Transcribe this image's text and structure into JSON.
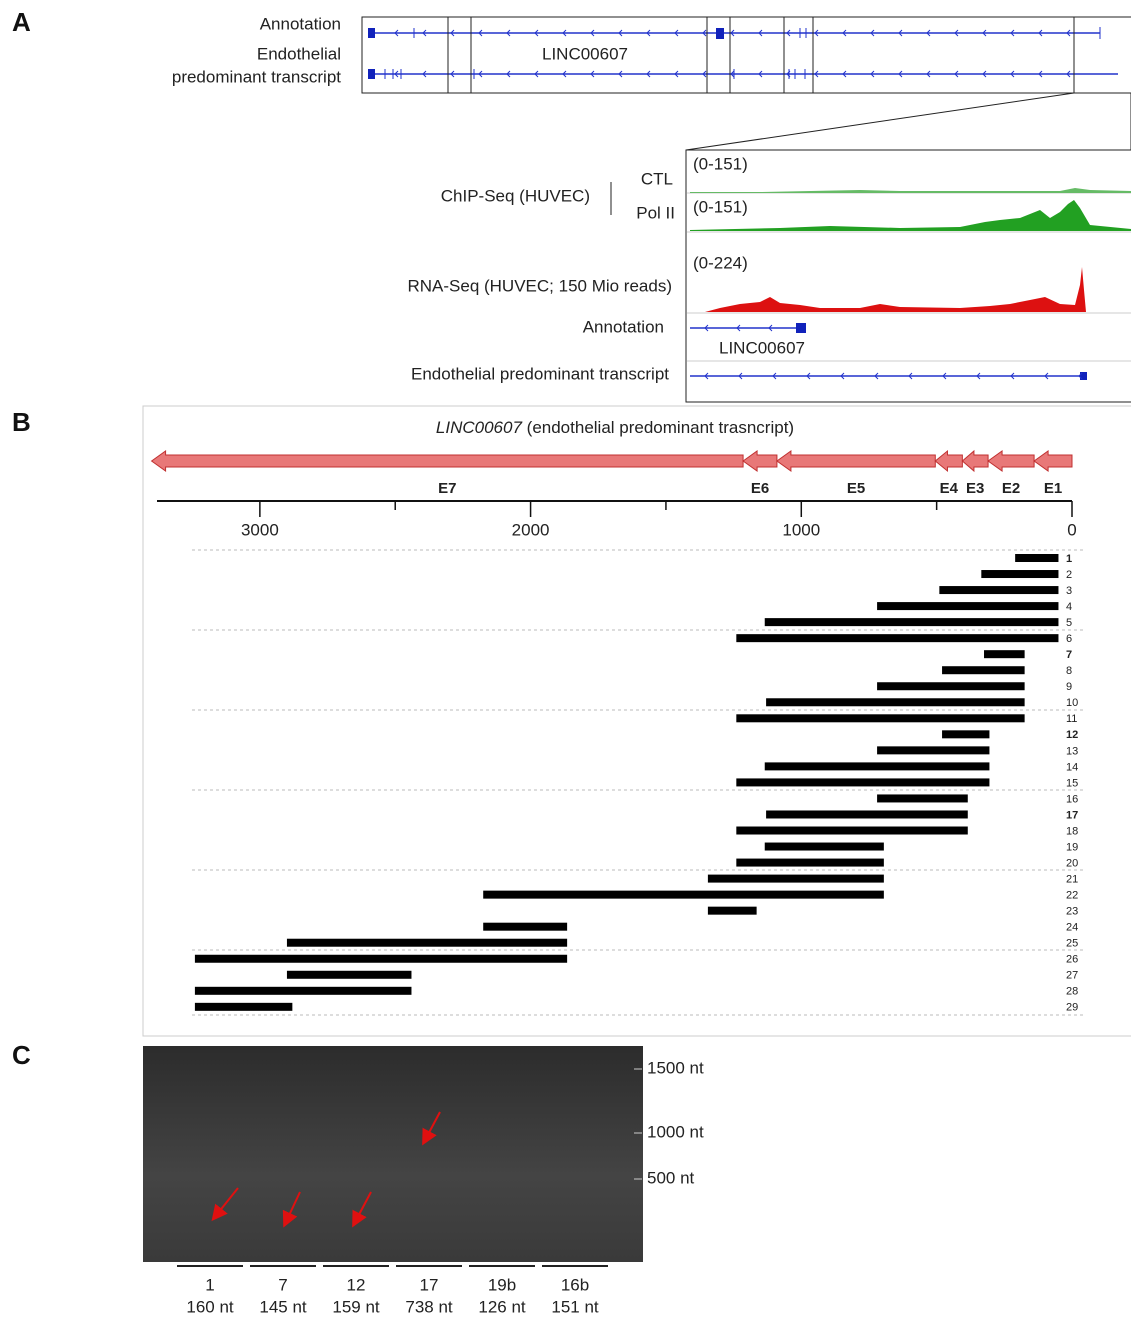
{
  "panel_a": {
    "label": "A",
    "overview": {
      "annotation": "Annotation",
      "endothelial_lines": [
        "Endothelial",
        "predominant transcript"
      ],
      "gene": "LINC00607"
    },
    "zoom": {
      "ctl_range": "(0-151)",
      "ctl": "CTL",
      "chip": "ChIP-Seq (HUVEC)",
      "pol2_range": "(0-151)",
      "pol2": "Pol II",
      "rna_range": "(0-224)",
      "rna": "RNA-Seq (HUVEC; 150 Mio reads)",
      "annotation": "Annotation",
      "gene": "LINC00607",
      "endothelial": "Endothelial predominant transcript"
    }
  },
  "panel_b": {
    "label": "B",
    "title_gene": "LINC00607",
    "title_rest": "(endothelial predominant trasncript)",
    "xlim": [
      3380,
      0
    ],
    "xticks": [
      3000,
      2000,
      1000,
      0
    ],
    "minor_ticks": [
      2500,
      1500,
      500
    ],
    "exons": [
      {
        "name": "E7",
        "start": 1215,
        "end": 3400
      },
      {
        "name": "E6",
        "start": 1090,
        "end": 1215
      },
      {
        "name": "E5",
        "start": 505,
        "end": 1090
      },
      {
        "name": "E4",
        "start": 405,
        "end": 505
      },
      {
        "name": "E3",
        "start": 310,
        "end": 405
      },
      {
        "name": "E2",
        "start": 140,
        "end": 310
      },
      {
        "name": "E1",
        "start": 0,
        "end": 140
      }
    ],
    "fragments": [
      {
        "label": "1",
        "start": 50,
        "end": 210,
        "bold": true
      },
      {
        "label": "2",
        "start": 50,
        "end": 335
      },
      {
        "label": "3",
        "start": 50,
        "end": 490
      },
      {
        "label": "4",
        "start": 50,
        "end": 720
      },
      {
        "label": "5",
        "start": 50,
        "end": 1135
      },
      {
        "label": "6",
        "start": 50,
        "end": 1240
      },
      {
        "label": "7",
        "start": 175,
        "end": 325,
        "bold": true
      },
      {
        "label": "8",
        "start": 175,
        "end": 480
      },
      {
        "label": "9",
        "start": 175,
        "end": 720
      },
      {
        "label": "10",
        "start": 175,
        "end": 1130
      },
      {
        "label": "11",
        "start": 175,
        "end": 1240
      },
      {
        "label": "12",
        "start": 305,
        "end": 480,
        "bold": true
      },
      {
        "label": "13",
        "start": 305,
        "end": 720
      },
      {
        "label": "14",
        "start": 305,
        "end": 1135
      },
      {
        "label": "15",
        "start": 305,
        "end": 1240
      },
      {
        "label": "16",
        "start": 385,
        "end": 720
      },
      {
        "label": "17",
        "start": 385,
        "end": 1130,
        "bold": true
      },
      {
        "label": "18",
        "start": 385,
        "end": 1240
      },
      {
        "label": "19",
        "start": 695,
        "end": 1135
      },
      {
        "label": "20",
        "start": 695,
        "end": 1240
      },
      {
        "label": "21",
        "start": 695,
        "end": 1345
      },
      {
        "label": "22",
        "start": 695,
        "end": 2175
      },
      {
        "label": "23",
        "start": 1165,
        "end": 1345
      },
      {
        "label": "24",
        "start": 1865,
        "end": 2175
      },
      {
        "label": "25",
        "start": 1865,
        "end": 2900
      },
      {
        "label": "26",
        "start": 1865,
        "end": 3240
      },
      {
        "label": "27",
        "start": 2440,
        "end": 2900
      },
      {
        "label": "28",
        "start": 2440,
        "end": 3240
      },
      {
        "label": "29",
        "start": 2880,
        "end": 3240
      }
    ]
  },
  "panel_c": {
    "label": "C",
    "markers": [
      "1500 nt",
      "1000 nt",
      "500 nt"
    ],
    "lanes": [
      {
        "name": "1",
        "size": "160 nt"
      },
      {
        "name": "7",
        "size": "145 nt"
      },
      {
        "name": "12",
        "size": "159 nt"
      },
      {
        "name": "17",
        "size": "738 nt"
      },
      {
        "name": "19b",
        "size": "126 nt"
      },
      {
        "name": "16b",
        "size": "151 nt"
      }
    ]
  }
}
